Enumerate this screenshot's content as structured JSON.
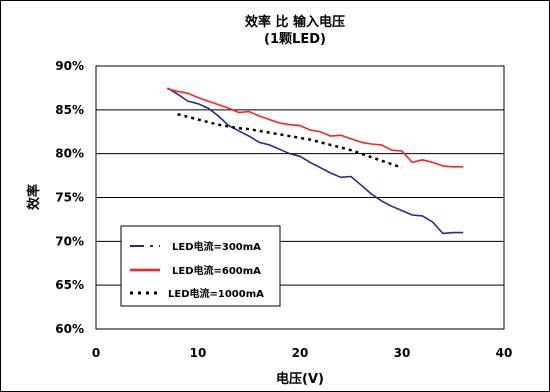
{
  "chart_data": {
    "type": "line",
    "title": "效率 比 输入电压",
    "subtitle": "(1颗LED)",
    "xlabel": "电压(V)",
    "ylabel": "效率",
    "xlim": [
      0,
      40
    ],
    "ylim": [
      60,
      90
    ],
    "x_ticks": [
      "0",
      "10",
      "20",
      "30",
      "40"
    ],
    "y_ticks": [
      "60%",
      "65%",
      "70%",
      "75%",
      "80%",
      "85%",
      "90%"
    ],
    "grid": "horizontal",
    "legend_position": "bottom-left",
    "series": [
      {
        "name": "LED电流=300mA",
        "color": "#1f2f8f",
        "style": "solid",
        "x": [
          7,
          8,
          9,
          10,
          11,
          12,
          13,
          14,
          15,
          16,
          17,
          18,
          19,
          20,
          21,
          22,
          23,
          24,
          25,
          26,
          27,
          28,
          29,
          30,
          31,
          32,
          33,
          34,
          35,
          36
        ],
        "y": [
          87.5,
          86.8,
          86.0,
          85.7,
          85.2,
          84.3,
          83.2,
          82.6,
          82.0,
          81.3,
          81.0,
          80.5,
          80.0,
          79.7,
          79.0,
          78.4,
          77.8,
          77.3,
          77.4,
          76.4,
          75.4,
          74.6,
          74.0,
          73.5,
          73.0,
          72.9,
          72.2,
          70.9,
          71.0,
          71.0
        ]
      },
      {
        "name": "LED电流=600mA",
        "color": "#ff2020",
        "style": "solid",
        "x": [
          7,
          8,
          9,
          10,
          11,
          12,
          13,
          14,
          15,
          16,
          17,
          18,
          19,
          20,
          21,
          22,
          23,
          24,
          25,
          26,
          27,
          28,
          29,
          30,
          31,
          32,
          33,
          34,
          35,
          36
        ],
        "y": [
          87.4,
          87.1,
          86.9,
          86.4,
          86.0,
          85.6,
          85.2,
          84.7,
          84.8,
          84.3,
          83.9,
          83.5,
          83.3,
          83.2,
          82.7,
          82.5,
          82.0,
          82.1,
          81.7,
          81.3,
          81.1,
          81.0,
          80.4,
          80.3,
          79.0,
          79.3,
          79.0,
          78.6,
          78.5,
          78.5
        ]
      },
      {
        "name": "LED电流=1000mA",
        "color": "#000000",
        "style": "dotted",
        "x": [
          8,
          9,
          10,
          11,
          12,
          13,
          14,
          15,
          16,
          17,
          18,
          19,
          20,
          21,
          22,
          23,
          24,
          25,
          26,
          27,
          28,
          29,
          30
        ],
        "y": [
          84.5,
          84.2,
          83.9,
          83.6,
          83.3,
          83.1,
          82.9,
          82.8,
          82.6,
          82.4,
          82.2,
          82.0,
          81.8,
          81.6,
          81.3,
          81.0,
          80.7,
          80.4,
          80.0,
          79.6,
          79.2,
          78.8,
          78.4
        ]
      }
    ]
  }
}
